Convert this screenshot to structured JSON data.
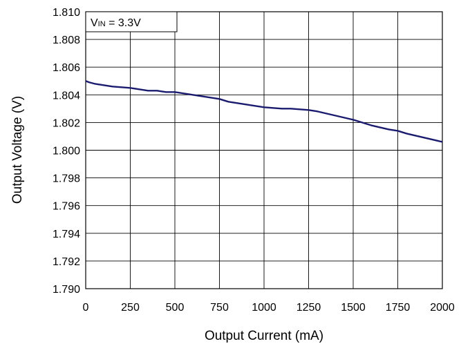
{
  "chart_data": {
    "type": "line",
    "title": "",
    "xlabel": "Output Current (mA)",
    "ylabel": "Output Voltage (V)",
    "xlim": [
      0,
      2000
    ],
    "ylim": [
      1.79,
      1.81
    ],
    "x_ticks": [
      "0",
      "250",
      "500",
      "750",
      "1000",
      "1250",
      "1500",
      "1750",
      "2000"
    ],
    "y_ticks": [
      "1.790",
      "1.792",
      "1.794",
      "1.796",
      "1.798",
      "1.800",
      "1.802",
      "1.804",
      "1.806",
      "1.808",
      "1.810"
    ],
    "grid": true,
    "annotation": {
      "v": "V",
      "sub": "IN",
      "rest": " = 3.3V"
    },
    "line_color": "#1a1a6e",
    "series": [
      {
        "x": [
          0,
          20,
          50,
          100,
          150,
          200,
          250,
          300,
          350,
          400,
          450,
          500,
          600,
          700,
          750,
          800,
          900,
          1000,
          1050,
          1100,
          1150,
          1200,
          1250,
          1300,
          1400,
          1500,
          1550,
          1600,
          1700,
          1750,
          1800,
          1900,
          2000
        ],
        "y": [
          1.805,
          1.8049,
          1.8048,
          1.8047,
          1.8046,
          1.80455,
          1.8045,
          1.8044,
          1.8043,
          1.8043,
          1.8042,
          1.8042,
          1.804,
          1.8038,
          1.8037,
          1.8035,
          1.8033,
          1.8031,
          1.80305,
          1.803,
          1.803,
          1.80295,
          1.8029,
          1.8028,
          1.8025,
          1.8022,
          1.802,
          1.8018,
          1.8015,
          1.8014,
          1.8012,
          1.8009,
          1.8006
        ]
      }
    ]
  }
}
